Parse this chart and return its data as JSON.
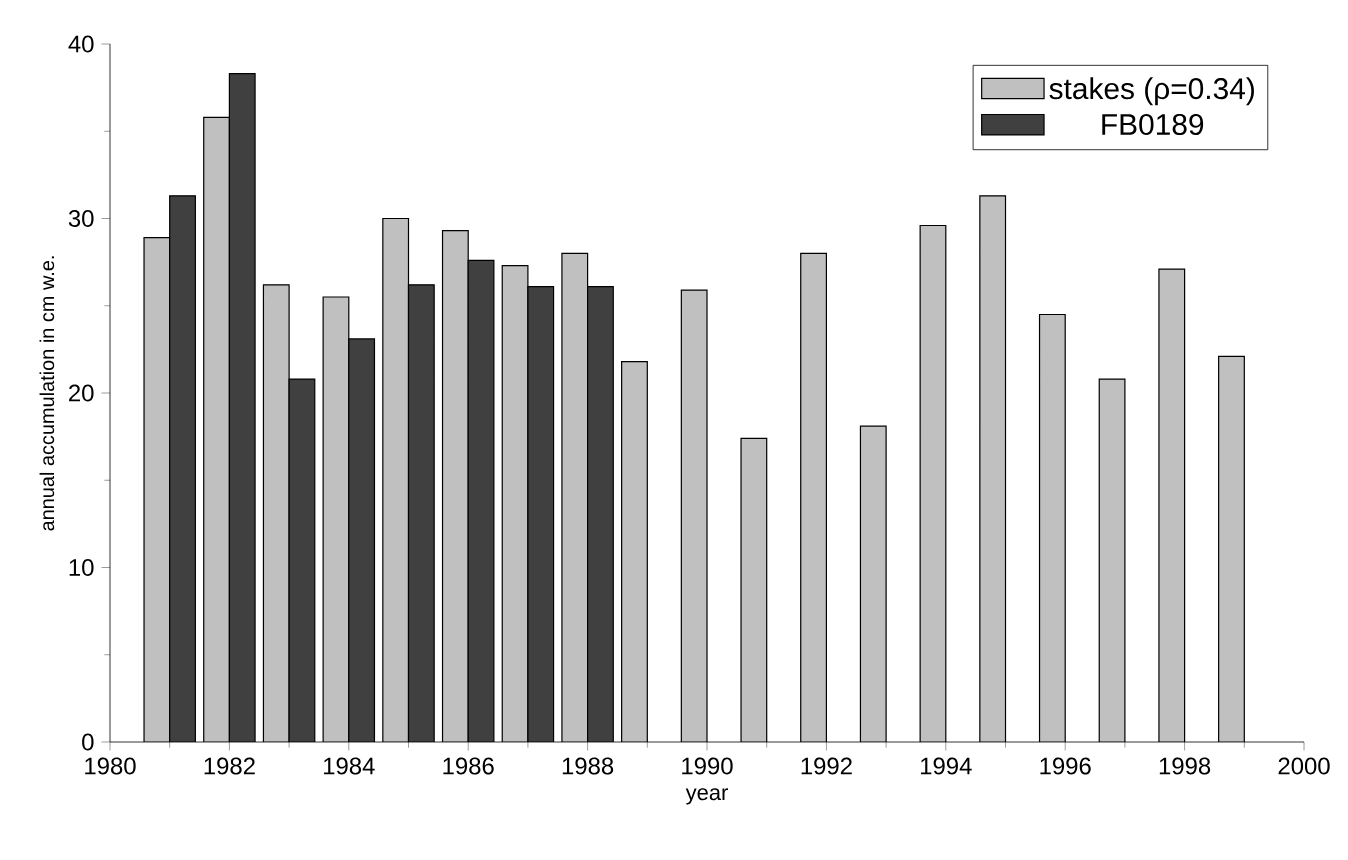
{
  "chart_data": {
    "type": "bar",
    "xlabel": "year",
    "ylabel": "annual accumulation in cm w.e.",
    "xlim": [
      1980,
      2000
    ],
    "xticks": [
      1980,
      1982,
      1984,
      1986,
      1988,
      1990,
      1992,
      1994,
      1996,
      1998,
      2000
    ],
    "ylim": [
      0,
      40
    ],
    "yticks": [
      0,
      10,
      20,
      30,
      40
    ],
    "legend": "top right",
    "grid": false,
    "series": [
      {
        "name": "stakes (ρ=0.34)",
        "color": "#c0c0c0",
        "x": [
          1981,
          1982,
          1983,
          1984,
          1985,
          1986,
          1987,
          1988,
          1989,
          1990,
          1991,
          1992,
          1993,
          1994,
          1995,
          1996,
          1997,
          1998,
          1999
        ],
        "values": [
          28.9,
          35.8,
          26.2,
          25.5,
          30.0,
          29.3,
          27.3,
          28.0,
          21.8,
          25.9,
          17.4,
          28.0,
          18.1,
          29.6,
          31.3,
          24.5,
          20.8,
          27.1,
          22.1
        ]
      },
      {
        "name": "FB0189",
        "color": "#404040",
        "x": [
          1981,
          1982,
          1983,
          1984,
          1985,
          1986,
          1987,
          1988
        ],
        "values": [
          31.3,
          38.3,
          20.8,
          23.1,
          26.2,
          27.6,
          26.1,
          26.1
        ]
      }
    ]
  }
}
